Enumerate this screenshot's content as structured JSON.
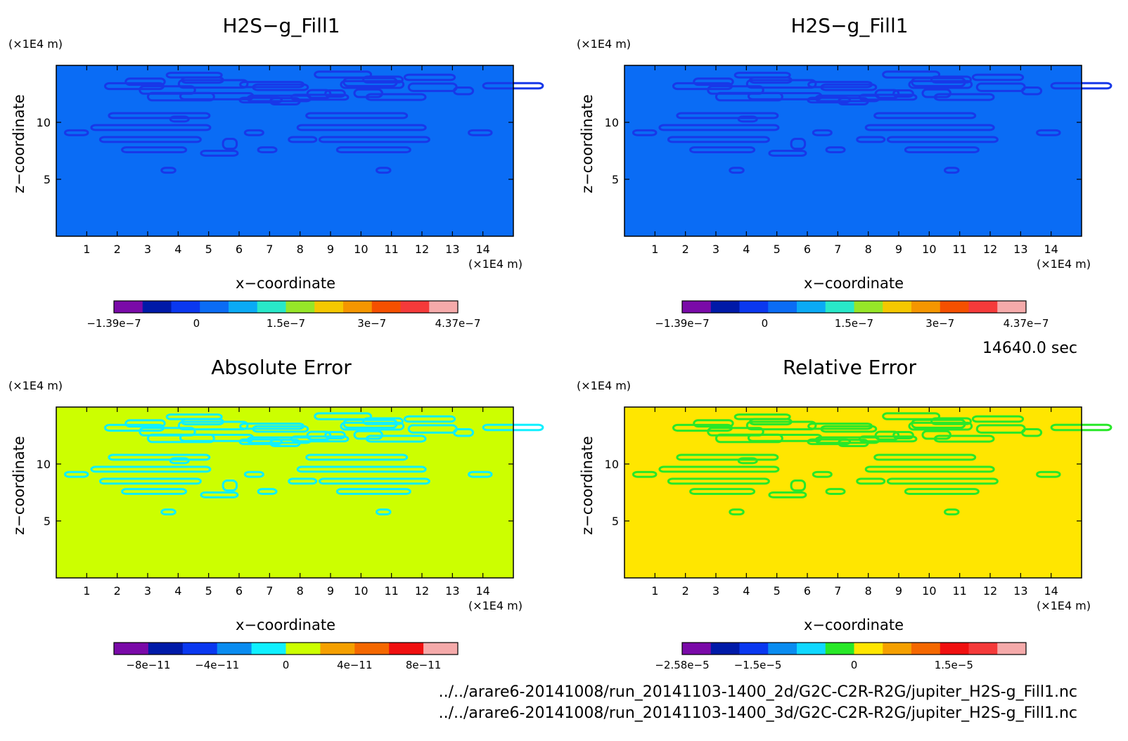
{
  "time_label": "14640.0 sec",
  "files": [
    "../../arare6-20141008/run_20141103-1400_2d/G2C-C2R-R2G/jupiter_H2S-g_Fill1.nc",
    "../../arare6-20141008/run_20141103-1400_3d/G2C-C2R-R2G/jupiter_H2S-g_Fill1.nc"
  ],
  "chart_data": [
    {
      "type": "heatmap",
      "title": "H2S−g_Fill1",
      "xlabel": "x−coordinate",
      "ylabel": "z−coordinate",
      "x_unit": "(×1E4 m)",
      "y_unit": "(×1E4 m)",
      "xlim": [
        0,
        15
      ],
      "ylim": [
        0,
        15
      ],
      "x_ticks": [
        "1",
        "2",
        "3",
        "4",
        "5",
        "6",
        "7",
        "8",
        "9",
        "10",
        "11",
        "12",
        "13",
        "14"
      ],
      "y_ticks": [
        "5",
        "10"
      ],
      "background_color": "#0a6cf5",
      "pattern_color": "#1838e8",
      "colorbar": {
        "colors": [
          "#7a0aa8",
          "#001aa8",
          "#0a38f0",
          "#0a6cf5",
          "#0aaaf5",
          "#28e8c8",
          "#96e628",
          "#f5c800",
          "#f59600",
          "#f55000",
          "#f53a3a",
          "#f5aaaa"
        ],
        "labels": [
          "−1.39e−7",
          "0",
          "1.5e−7",
          "3e−7",
          "4.37e−7"
        ]
      }
    },
    {
      "type": "heatmap",
      "title": "H2S−g_Fill1",
      "xlabel": "x−coordinate",
      "ylabel": "z−coordinate",
      "x_unit": "(×1E4 m)",
      "y_unit": "(×1E4 m)",
      "xlim": [
        0,
        15
      ],
      "ylim": [
        0,
        15
      ],
      "x_ticks": [
        "1",
        "2",
        "3",
        "4",
        "5",
        "6",
        "7",
        "8",
        "9",
        "10",
        "11",
        "12",
        "13",
        "14"
      ],
      "y_ticks": [
        "5",
        "10"
      ],
      "background_color": "#0a6cf5",
      "pattern_color": "#1838e8",
      "colorbar": {
        "colors": [
          "#7a0aa8",
          "#001aa8",
          "#0a38f0",
          "#0a6cf5",
          "#0aaaf5",
          "#28e8c8",
          "#96e628",
          "#f5c800",
          "#f59600",
          "#f55000",
          "#f53a3a",
          "#f5aaaa"
        ],
        "labels": [
          "−1.39e−7",
          "0",
          "1.5e−7",
          "3e−7",
          "4.37e−7"
        ]
      }
    },
    {
      "type": "heatmap",
      "title": "Absolute Error",
      "xlabel": "x−coordinate",
      "ylabel": "z−coordinate",
      "x_unit": "(×1E4 m)",
      "y_unit": "(×1E4 m)",
      "xlim": [
        0,
        15
      ],
      "ylim": [
        0,
        15
      ],
      "x_ticks": [
        "1",
        "2",
        "3",
        "4",
        "5",
        "6",
        "7",
        "8",
        "9",
        "10",
        "11",
        "12",
        "13",
        "14"
      ],
      "y_ticks": [
        "5",
        "10"
      ],
      "background_color": "#ccff00",
      "pattern_color": "#10f0ff",
      "colorbar": {
        "colors": [
          "#7a0aa8",
          "#001aa8",
          "#0a38f0",
          "#0a8cf0",
          "#10f0ff",
          "#ccff00",
          "#f5a000",
          "#f56800",
          "#f01010",
          "#f5aaaa"
        ],
        "labels": [
          "−8e−11",
          "−4e−11",
          "0",
          "4e−11",
          "8e−11"
        ]
      }
    },
    {
      "type": "heatmap",
      "title": "Relative Error",
      "xlabel": "x−coordinate",
      "ylabel": "z−coordinate",
      "x_unit": "(×1E4 m)",
      "y_unit": "(×1E4 m)",
      "xlim": [
        0,
        15
      ],
      "ylim": [
        0,
        15
      ],
      "x_ticks": [
        "1",
        "2",
        "3",
        "4",
        "5",
        "6",
        "7",
        "8",
        "9",
        "10",
        "11",
        "12",
        "13",
        "14"
      ],
      "y_ticks": [
        "5",
        "10"
      ],
      "background_color": "#ffe600",
      "pattern_color": "#28e828",
      "colorbar": {
        "colors": [
          "#7a0aa8",
          "#001aa8",
          "#0a38f0",
          "#0a8cf0",
          "#10d8ff",
          "#28e828",
          "#ffe600",
          "#f5a000",
          "#f56800",
          "#f01010",
          "#f53a3a",
          "#f5aaaa"
        ],
        "labels": [
          "−2.58e−5",
          "−1.5e−5",
          "0",
          "1.5e−5"
        ]
      }
    }
  ]
}
